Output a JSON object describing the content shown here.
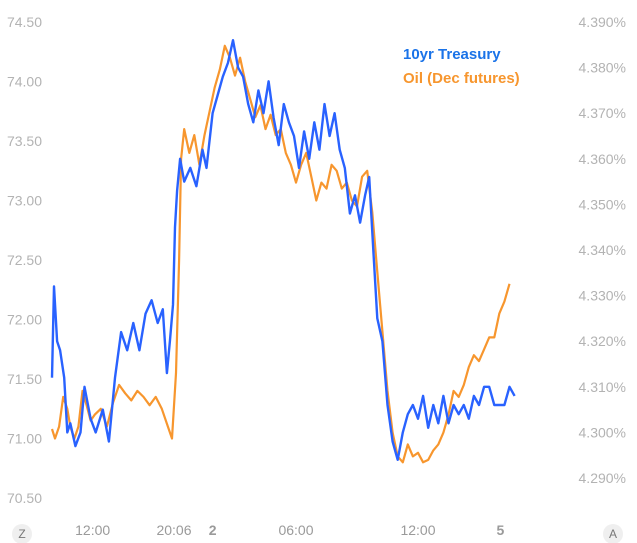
{
  "chart_data": {
    "type": "line",
    "legend_position": "top-right",
    "grid": false,
    "left_axis": {
      "min": 70.5,
      "max": 74.5,
      "ticks": [
        "74.50",
        "74.00",
        "73.50",
        "73.00",
        "72.50",
        "72.00",
        "71.50",
        "71.00",
        "70.50"
      ]
    },
    "right_axis": {
      "min": 4.29,
      "max": 4.39,
      "ticks": [
        "4.390%",
        "4.380%",
        "4.370%",
        "4.360%",
        "4.350%",
        "4.340%",
        "4.330%",
        "4.320%",
        "4.310%",
        "4.300%",
        "4.290%"
      ]
    },
    "x_axis": {
      "min": 0,
      "max": 48,
      "ticks": [
        {
          "t": 4,
          "label": "12:00",
          "bold": false
        },
        {
          "t": 12,
          "label": "20:06",
          "bold": false
        },
        {
          "t": 15.8,
          "label": "2",
          "bold": true
        },
        {
          "t": 24,
          "label": "06:00",
          "bold": false
        },
        {
          "t": 36,
          "label": "12:00",
          "bold": false
        },
        {
          "t": 44.1,
          "label": "5",
          "bold": true
        }
      ]
    },
    "corner_labels": {
      "left": "Z",
      "right": "A"
    },
    "series": [
      {
        "name": "10yr Treasury",
        "color": "#2962ff",
        "axis": "right",
        "points": [
          [
            0.0,
            4.312
          ],
          [
            0.2,
            4.332
          ],
          [
            0.5,
            4.32
          ],
          [
            0.8,
            4.318
          ],
          [
            1.2,
            4.312
          ],
          [
            1.5,
            4.3
          ],
          [
            1.8,
            4.302
          ],
          [
            2.3,
            4.297
          ],
          [
            2.8,
            4.3
          ],
          [
            3.2,
            4.31
          ],
          [
            3.8,
            4.303
          ],
          [
            4.3,
            4.3
          ],
          [
            5.0,
            4.305
          ],
          [
            5.6,
            4.298
          ],
          [
            6.2,
            4.312
          ],
          [
            6.8,
            4.322
          ],
          [
            7.4,
            4.318
          ],
          [
            8.0,
            4.324
          ],
          [
            8.6,
            4.318
          ],
          [
            9.2,
            4.326
          ],
          [
            9.8,
            4.329
          ],
          [
            10.4,
            4.324
          ],
          [
            10.9,
            4.327
          ],
          [
            11.3,
            4.313
          ],
          [
            11.6,
            4.32
          ],
          [
            11.9,
            4.328
          ],
          [
            12.1,
            4.345
          ],
          [
            12.3,
            4.353
          ],
          [
            12.6,
            4.36
          ],
          [
            13.0,
            4.355
          ],
          [
            13.6,
            4.358
          ],
          [
            14.2,
            4.354
          ],
          [
            14.8,
            4.362
          ],
          [
            15.2,
            4.358
          ],
          [
            15.8,
            4.37
          ],
          [
            16.3,
            4.374
          ],
          [
            16.8,
            4.378
          ],
          [
            17.3,
            4.381
          ],
          [
            17.8,
            4.386
          ],
          [
            18.3,
            4.38
          ],
          [
            18.8,
            4.378
          ],
          [
            19.3,
            4.372
          ],
          [
            19.8,
            4.368
          ],
          [
            20.3,
            4.375
          ],
          [
            20.8,
            4.37
          ],
          [
            21.3,
            4.377
          ],
          [
            21.8,
            4.369
          ],
          [
            22.3,
            4.363
          ],
          [
            22.8,
            4.372
          ],
          [
            23.3,
            4.368
          ],
          [
            23.8,
            4.365
          ],
          [
            24.3,
            4.358
          ],
          [
            24.8,
            4.366
          ],
          [
            25.3,
            4.36
          ],
          [
            25.8,
            4.368
          ],
          [
            26.3,
            4.362
          ],
          [
            26.8,
            4.372
          ],
          [
            27.3,
            4.365
          ],
          [
            27.8,
            4.37
          ],
          [
            28.3,
            4.362
          ],
          [
            28.8,
            4.358
          ],
          [
            29.3,
            4.348
          ],
          [
            29.8,
            4.352
          ],
          [
            30.3,
            4.346
          ],
          [
            30.8,
            4.352
          ],
          [
            31.2,
            4.356
          ],
          [
            31.6,
            4.34
          ],
          [
            32.0,
            4.325
          ],
          [
            32.5,
            4.32
          ],
          [
            33.0,
            4.306
          ],
          [
            33.5,
            4.298
          ],
          [
            34.0,
            4.294
          ],
          [
            34.5,
            4.3
          ],
          [
            35.0,
            4.304
          ],
          [
            35.5,
            4.306
          ],
          [
            36.0,
            4.303
          ],
          [
            36.5,
            4.308
          ],
          [
            37.0,
            4.301
          ],
          [
            37.5,
            4.306
          ],
          [
            38.0,
            4.302
          ],
          [
            38.5,
            4.308
          ],
          [
            39.0,
            4.302
          ],
          [
            39.5,
            4.306
          ],
          [
            40.0,
            4.304
          ],
          [
            40.5,
            4.306
          ],
          [
            41.0,
            4.303
          ],
          [
            41.5,
            4.308
          ],
          [
            42.0,
            4.306
          ],
          [
            42.5,
            4.31
          ],
          [
            43.0,
            4.31
          ],
          [
            43.5,
            4.306
          ],
          [
            44.0,
            4.306
          ],
          [
            44.5,
            4.306
          ],
          [
            45.0,
            4.31
          ],
          [
            45.5,
            4.308
          ]
        ]
      },
      {
        "name": "Oil (Dec futures)",
        "color": "#f7962e",
        "axis": "left",
        "points": [
          [
            0.0,
            71.08
          ],
          [
            0.3,
            71.0
          ],
          [
            0.7,
            71.1
          ],
          [
            1.1,
            71.35
          ],
          [
            1.5,
            71.25
          ],
          [
            1.8,
            71.1
          ],
          [
            2.2,
            71.0
          ],
          [
            2.6,
            71.1
          ],
          [
            3.0,
            71.4
          ],
          [
            3.4,
            71.28
          ],
          [
            3.8,
            71.15
          ],
          [
            4.2,
            71.2
          ],
          [
            4.8,
            71.25
          ],
          [
            5.4,
            71.1
          ],
          [
            6.0,
            71.3
          ],
          [
            6.6,
            71.45
          ],
          [
            7.2,
            71.38
          ],
          [
            7.8,
            71.32
          ],
          [
            8.4,
            71.4
          ],
          [
            9.0,
            71.35
          ],
          [
            9.6,
            71.28
          ],
          [
            10.2,
            71.35
          ],
          [
            10.8,
            71.25
          ],
          [
            11.4,
            71.1
          ],
          [
            11.8,
            71.0
          ],
          [
            12.2,
            71.55
          ],
          [
            12.5,
            72.5
          ],
          [
            12.7,
            73.35
          ],
          [
            13.0,
            73.6
          ],
          [
            13.5,
            73.4
          ],
          [
            14.0,
            73.55
          ],
          [
            14.5,
            73.3
          ],
          [
            15.0,
            73.55
          ],
          [
            15.5,
            73.75
          ],
          [
            16.0,
            73.95
          ],
          [
            16.5,
            74.1
          ],
          [
            17.0,
            74.3
          ],
          [
            17.5,
            74.2
          ],
          [
            18.0,
            74.05
          ],
          [
            18.5,
            74.2
          ],
          [
            19.0,
            74.0
          ],
          [
            19.5,
            73.85
          ],
          [
            20.0,
            73.7
          ],
          [
            20.5,
            73.8
          ],
          [
            21.0,
            73.6
          ],
          [
            21.5,
            73.72
          ],
          [
            22.0,
            73.55
          ],
          [
            22.5,
            73.6
          ],
          [
            23.0,
            73.4
          ],
          [
            23.5,
            73.3
          ],
          [
            24.0,
            73.15
          ],
          [
            24.5,
            73.3
          ],
          [
            25.0,
            73.4
          ],
          [
            25.5,
            73.2
          ],
          [
            26.0,
            73.0
          ],
          [
            26.5,
            73.15
          ],
          [
            27.0,
            73.1
          ],
          [
            27.5,
            73.3
          ],
          [
            28.0,
            73.25
          ],
          [
            28.5,
            73.1
          ],
          [
            29.0,
            73.15
          ],
          [
            29.5,
            73.0
          ],
          [
            30.0,
            72.95
          ],
          [
            30.5,
            73.2
          ],
          [
            31.0,
            73.25
          ],
          [
            31.5,
            72.9
          ],
          [
            32.0,
            72.4
          ],
          [
            32.5,
            71.9
          ],
          [
            33.0,
            71.4
          ],
          [
            33.5,
            71.05
          ],
          [
            34.0,
            70.85
          ],
          [
            34.5,
            70.8
          ],
          [
            35.0,
            70.95
          ],
          [
            35.5,
            70.85
          ],
          [
            36.0,
            70.88
          ],
          [
            36.5,
            70.8
          ],
          [
            37.0,
            70.82
          ],
          [
            37.5,
            70.9
          ],
          [
            38.0,
            70.95
          ],
          [
            38.5,
            71.05
          ],
          [
            39.0,
            71.2
          ],
          [
            39.5,
            71.4
          ],
          [
            40.0,
            71.35
          ],
          [
            40.5,
            71.45
          ],
          [
            41.0,
            71.6
          ],
          [
            41.5,
            71.7
          ],
          [
            42.0,
            71.65
          ],
          [
            42.5,
            71.75
          ],
          [
            43.0,
            71.85
          ],
          [
            43.5,
            71.85
          ],
          [
            44.0,
            72.05
          ],
          [
            44.5,
            72.15
          ],
          [
            45.0,
            72.3
          ]
        ]
      }
    ]
  }
}
